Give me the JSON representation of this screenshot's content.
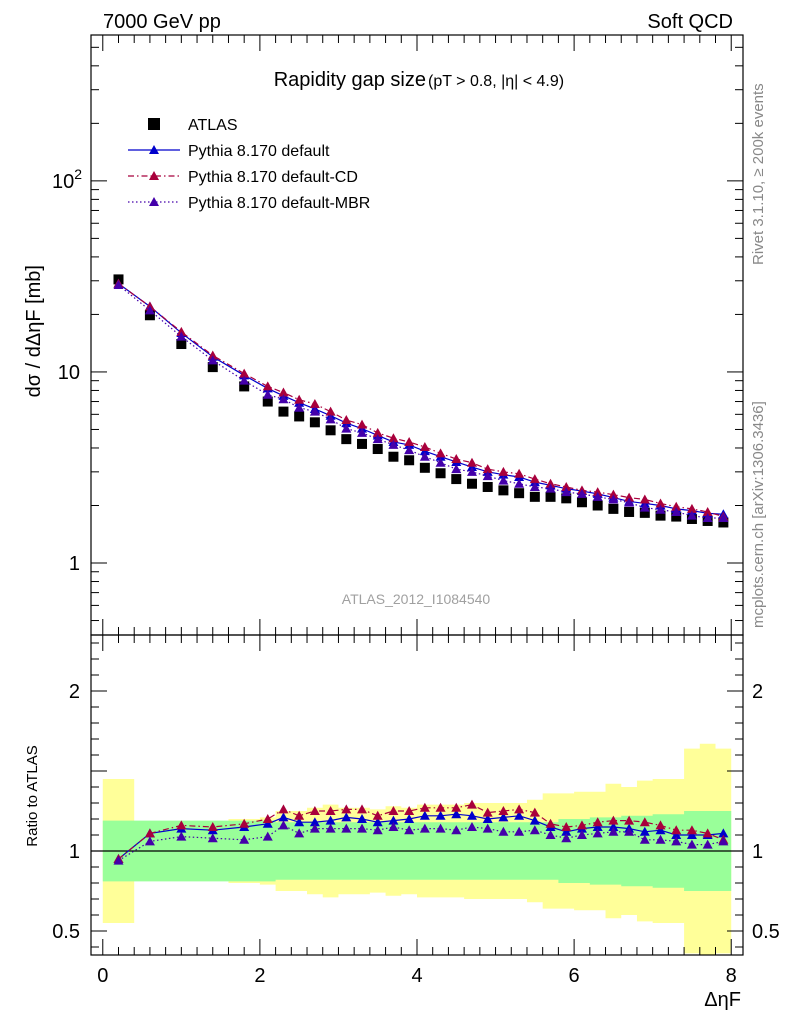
{
  "header": {
    "left": "7000 GeV pp",
    "right": "Soft QCD"
  },
  "side_labels": {
    "rivet": "Rivet 3.1.10, ≥ 200k events",
    "mcplots": "mcplots.cern.ch [arXiv:1306.3436]"
  },
  "chart_data": [
    {
      "type": "scatter",
      "title": "Rapidity gap size",
      "subtitle": "(pT > 0.8, |η| < 4.9)",
      "ylabel": "dσ / dΔηF [mb]",
      "xlabel": "ΔηF",
      "yscale": "log",
      "xlim": [
        -0.15,
        8.15
      ],
      "ylim": [
        0.42,
        580
      ],
      "y_tick_labels": [
        "1",
        "10",
        "10^2"
      ],
      "legend_position": "top-left",
      "watermark": "ATLAS_2012_I1084540",
      "x": [
        0.2,
        0.6,
        1.0,
        1.4,
        1.8,
        2.1,
        2.3,
        2.5,
        2.7,
        2.9,
        3.1,
        3.3,
        3.5,
        3.7,
        3.9,
        4.1,
        4.3,
        4.5,
        4.7,
        4.9,
        5.1,
        5.3,
        5.5,
        5.7,
        5.9,
        6.1,
        6.3,
        6.5,
        6.7,
        6.9,
        7.1,
        7.3,
        7.5,
        7.7,
        7.9
      ],
      "series": [
        {
          "name": "ATLAS",
          "color": "#000000",
          "marker": "square",
          "values": [
            30.5,
            19.8,
            14.0,
            10.6,
            8.4,
            7.0,
            6.2,
            5.85,
            5.45,
            4.95,
            4.45,
            4.2,
            3.95,
            3.6,
            3.45,
            3.15,
            2.95,
            2.75,
            2.6,
            2.5,
            2.4,
            2.32,
            2.22,
            2.22,
            2.18,
            2.08,
            2.0,
            1.92,
            1.85,
            1.83,
            1.77,
            1.75,
            1.7,
            1.66,
            1.63
          ]
        },
        {
          "name": "Pythia 8.170 default",
          "color": "#0000cc",
          "marker": "triangle",
          "line": "solid",
          "values": [
            29.0,
            22.0,
            16.0,
            12.0,
            9.6,
            8.2,
            7.5,
            6.9,
            6.4,
            5.9,
            5.4,
            5.05,
            4.65,
            4.3,
            4.15,
            3.85,
            3.6,
            3.38,
            3.18,
            3.0,
            2.9,
            2.82,
            2.65,
            2.55,
            2.45,
            2.38,
            2.3,
            2.2,
            2.1,
            2.05,
            2.0,
            1.92,
            1.88,
            1.82,
            1.8
          ]
        },
        {
          "name": "Pythia 8.170 default-CD",
          "color": "#a8003c",
          "marker": "triangle",
          "line": "dashdot",
          "values": [
            29.0,
            22.0,
            16.2,
            12.2,
            9.8,
            8.4,
            7.8,
            7.15,
            6.8,
            6.2,
            5.6,
            5.3,
            4.8,
            4.5,
            4.3,
            4.05,
            3.75,
            3.5,
            3.35,
            3.1,
            3.0,
            2.93,
            2.75,
            2.6,
            2.5,
            2.4,
            2.35,
            2.28,
            2.2,
            2.15,
            2.05,
            1.97,
            1.92,
            1.85,
            1.75
          ]
        },
        {
          "name": "Pythia 8.170 default-MBR",
          "color": "#4400aa",
          "marker": "triangle",
          "line": "dotted",
          "values": [
            28.5,
            21.0,
            15.3,
            11.5,
            9.0,
            7.6,
            7.2,
            6.5,
            6.2,
            5.65,
            5.05,
            4.8,
            4.45,
            4.15,
            3.9,
            3.6,
            3.35,
            3.1,
            3.0,
            2.85,
            2.7,
            2.6,
            2.5,
            2.45,
            2.35,
            2.3,
            2.22,
            2.15,
            2.07,
            1.95,
            1.9,
            1.85,
            1.77,
            1.72,
            1.72
          ]
        }
      ]
    },
    {
      "type": "scatter",
      "ylabel": "Ratio to ATLAS",
      "xlabel": "ΔηF",
      "xlim": [
        -0.15,
        8.15
      ],
      "ylim": [
        0.35,
        2.35
      ],
      "y_ticks": [
        0.5,
        1,
        2
      ],
      "y_tick_labels": [
        "0.5",
        "1",
        "2"
      ],
      "x_ticks": [
        0,
        2,
        4,
        6,
        8
      ],
      "x_tick_labels": [
        "0",
        "2",
        "4",
        "6",
        "8"
      ],
      "reference_line": 1,
      "band_edges": [
        0,
        0.4,
        0.8,
        1.2,
        1.6,
        2.0,
        2.2,
        2.4,
        2.6,
        2.8,
        3.0,
        3.2,
        3.4,
        3.6,
        3.8,
        4.0,
        4.2,
        4.4,
        4.6,
        4.8,
        5.0,
        5.2,
        5.4,
        5.6,
        5.8,
        6.0,
        6.2,
        6.4,
        6.6,
        6.8,
        7.0,
        7.2,
        7.4,
        7.6,
        7.8,
        8.0
      ],
      "green_band": {
        "low": [
          0.81,
          0.81,
          0.81,
          0.81,
          0.81,
          0.81,
          0.82,
          0.82,
          0.82,
          0.82,
          0.82,
          0.82,
          0.82,
          0.82,
          0.82,
          0.82,
          0.82,
          0.82,
          0.82,
          0.82,
          0.82,
          0.82,
          0.82,
          0.82,
          0.8,
          0.8,
          0.79,
          0.79,
          0.78,
          0.78,
          0.77,
          0.77,
          0.75,
          0.75,
          0.75
        ],
        "high": [
          1.19,
          1.19,
          1.19,
          1.19,
          1.19,
          1.19,
          1.18,
          1.18,
          1.18,
          1.18,
          1.18,
          1.18,
          1.18,
          1.18,
          1.18,
          1.18,
          1.18,
          1.18,
          1.18,
          1.18,
          1.18,
          1.18,
          1.18,
          1.18,
          1.2,
          1.2,
          1.21,
          1.21,
          1.22,
          1.22,
          1.23,
          1.23,
          1.25,
          1.25,
          1.25
        ]
      },
      "yellow_band": {
        "low": [
          0.55,
          0.86,
          0.84,
          0.85,
          0.8,
          0.79,
          0.75,
          0.75,
          0.73,
          0.71,
          0.73,
          0.73,
          0.74,
          0.72,
          0.73,
          0.71,
          0.71,
          0.71,
          0.7,
          0.7,
          0.7,
          0.7,
          0.68,
          0.64,
          0.64,
          0.63,
          0.63,
          0.58,
          0.6,
          0.56,
          0.55,
          0.55,
          0.36,
          0.33,
          0.36
        ],
        "high": [
          1.45,
          1.14,
          1.16,
          1.15,
          1.2,
          1.21,
          1.25,
          1.25,
          1.27,
          1.29,
          1.27,
          1.27,
          1.26,
          1.28,
          1.27,
          1.29,
          1.29,
          1.29,
          1.3,
          1.3,
          1.3,
          1.3,
          1.32,
          1.36,
          1.36,
          1.37,
          1.37,
          1.42,
          1.4,
          1.44,
          1.45,
          1.45,
          1.64,
          1.67,
          1.64
        ]
      },
      "x": [
        0.2,
        0.6,
        1.0,
        1.4,
        1.8,
        2.1,
        2.3,
        2.5,
        2.7,
        2.9,
        3.1,
        3.3,
        3.5,
        3.7,
        3.9,
        4.1,
        4.3,
        4.5,
        4.7,
        4.9,
        5.1,
        5.3,
        5.5,
        5.7,
        5.9,
        6.1,
        6.3,
        6.5,
        6.7,
        6.9,
        7.1,
        7.3,
        7.5,
        7.7,
        7.9
      ],
      "series": [
        {
          "name": "Pythia 8.170 default",
          "color": "#0000cc",
          "marker": "triangle",
          "line": "solid",
          "values": [
            0.95,
            1.11,
            1.14,
            1.13,
            1.15,
            1.17,
            1.21,
            1.18,
            1.18,
            1.19,
            1.21,
            1.2,
            1.18,
            1.19,
            1.2,
            1.22,
            1.22,
            1.23,
            1.22,
            1.2,
            1.21,
            1.22,
            1.19,
            1.15,
            1.12,
            1.14,
            1.15,
            1.15,
            1.14,
            1.12,
            1.13,
            1.1,
            1.1,
            1.1,
            1.11
          ]
        },
        {
          "name": "Pythia 8.170 default-CD",
          "color": "#a8003c",
          "marker": "triangle",
          "line": "dashdot",
          "values": [
            0.95,
            1.11,
            1.16,
            1.15,
            1.17,
            1.2,
            1.26,
            1.22,
            1.25,
            1.25,
            1.26,
            1.26,
            1.22,
            1.25,
            1.25,
            1.27,
            1.27,
            1.27,
            1.29,
            1.24,
            1.25,
            1.26,
            1.24,
            1.17,
            1.15,
            1.16,
            1.18,
            1.19,
            1.19,
            1.18,
            1.16,
            1.13,
            1.13,
            1.11,
            1.07
          ]
        },
        {
          "name": "Pythia 8.170 default-MBR",
          "color": "#4400aa",
          "marker": "triangle",
          "line": "dotted",
          "values": [
            0.94,
            1.06,
            1.09,
            1.08,
            1.07,
            1.09,
            1.16,
            1.11,
            1.14,
            1.14,
            1.14,
            1.14,
            1.13,
            1.15,
            1.13,
            1.14,
            1.14,
            1.13,
            1.15,
            1.14,
            1.12,
            1.12,
            1.13,
            1.1,
            1.08,
            1.1,
            1.11,
            1.12,
            1.12,
            1.07,
            1.07,
            1.06,
            1.04,
            1.04,
            1.06
          ]
        }
      ]
    }
  ]
}
